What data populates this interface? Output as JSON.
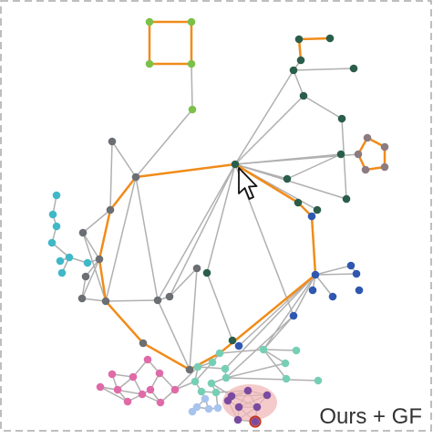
{
  "caption": "Ours + GF",
  "colors": {
    "background": "#ffffff",
    "frame": "#a8a8a8",
    "plain_edge": "#b0b0b0",
    "highlight_edge": "#f08c1a",
    "focus_halo": "#f2b8b8",
    "focus_ring": "#c0392b",
    "cursor_fill": "#ffffff",
    "cursor_stroke": "#111111"
  },
  "clusters": [
    {
      "name": "green",
      "color": "#7cc04a"
    },
    {
      "name": "dark-green",
      "color": "#2b5e4a"
    },
    {
      "name": "mauve",
      "color": "#8d7b82"
    },
    {
      "name": "gray",
      "color": "#6b6e73"
    },
    {
      "name": "cyan",
      "color": "#3fb8c8"
    },
    {
      "name": "blue",
      "color": "#2f57b0"
    },
    {
      "name": "teal",
      "color": "#76cfb4"
    },
    {
      "name": "pink",
      "color": "#e06aa8"
    },
    {
      "name": "light-blue",
      "color": "#a8c4ee"
    },
    {
      "name": "purple",
      "color": "#7a4aa0"
    }
  ],
  "pointer_icon": "arrow-cursor-icon"
}
